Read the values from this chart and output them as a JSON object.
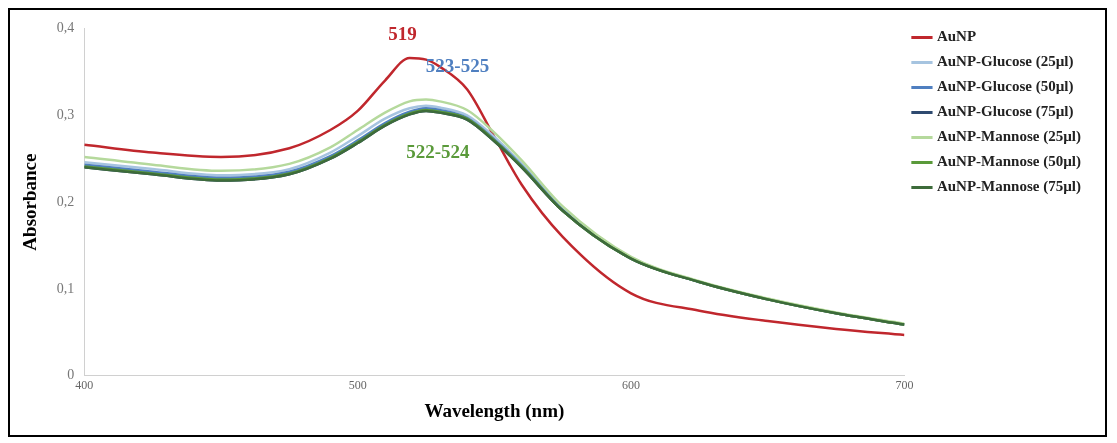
{
  "chart_data": {
    "type": "line",
    "xlabel": "Wavelength (nm)",
    "ylabel": "Absorbance",
    "x": [
      400,
      425,
      450,
      475,
      490,
      500,
      510,
      519,
      525,
      530,
      540,
      550,
      560,
      575,
      600,
      625,
      650,
      675,
      700
    ],
    "series": [
      {
        "name": "AuNP",
        "color": "#c0272d",
        "values": [
          0.266,
          0.257,
          0.252,
          0.262,
          0.283,
          0.305,
          0.34,
          0.366,
          0.364,
          0.356,
          0.33,
          0.275,
          0.22,
          0.16,
          0.095,
          0.075,
          0.063,
          0.054,
          0.047
        ]
      },
      {
        "name": "AuNP-Glucose (25µl)",
        "color": "#a6c4e0",
        "values": [
          0.246,
          0.238,
          0.231,
          0.238,
          0.257,
          0.276,
          0.296,
          0.308,
          0.311,
          0.309,
          0.3,
          0.275,
          0.244,
          0.192,
          0.136,
          0.108,
          0.088,
          0.072,
          0.059
        ]
      },
      {
        "name": "AuNP-Glucose (50µl)",
        "color": "#4f7fc0",
        "values": [
          0.243,
          0.235,
          0.228,
          0.235,
          0.253,
          0.271,
          0.291,
          0.304,
          0.308,
          0.306,
          0.297,
          0.272,
          0.242,
          0.191,
          0.135,
          0.108,
          null,
          null,
          null
        ]
      },
      {
        "name": "AuNP-Glucose (75µl)",
        "color": "#2e4a70",
        "values": [
          0.24,
          0.232,
          0.225,
          0.232,
          0.25,
          0.268,
          0.288,
          0.301,
          0.305,
          0.303,
          0.295,
          0.27,
          0.24,
          0.19,
          0.135,
          0.108,
          0.088,
          0.072,
          0.059
        ]
      },
      {
        "name": "AuNP-Mannose (25µl)",
        "color": "#b5d99c",
        "values": [
          0.252,
          0.243,
          0.236,
          0.244,
          0.263,
          0.283,
          0.303,
          0.316,
          0.318,
          0.316,
          0.306,
          0.28,
          0.248,
          0.195,
          0.137,
          0.109,
          0.089,
          0.073,
          0.06
        ]
      },
      {
        "name": "AuNP-Mannose (50µl)",
        "color": "#5a9a3a",
        "values": [
          0.241,
          0.233,
          0.226,
          0.233,
          0.251,
          0.269,
          0.289,
          0.302,
          0.306,
          0.304,
          0.296,
          0.271,
          0.241,
          0.19,
          0.135,
          0.108,
          0.088,
          0.072,
          0.059
        ]
      },
      {
        "name": "AuNP-Mannose (75µl)",
        "color": "#3d6b3a",
        "values": [
          0.24,
          0.232,
          0.225,
          0.232,
          0.25,
          0.268,
          0.288,
          0.301,
          0.305,
          0.303,
          0.295,
          0.27,
          0.24,
          0.19,
          0.135,
          0.108,
          0.088,
          0.072,
          0.059
        ]
      }
    ],
    "xlim": [
      400,
      700
    ],
    "xticks": [
      400,
      500,
      600,
      700
    ],
    "ylim": [
      0,
      0.4
    ],
    "yticks": [
      {
        "value": 0,
        "label": "0"
      },
      {
        "value": 0.1,
        "label": "0,1"
      },
      {
        "value": 0.2,
        "label": "0,2"
      },
      {
        "value": 0.3,
        "label": "0,3"
      },
      {
        "value": 0.4,
        "label": "0,4"
      }
    ],
    "annotations": [
      "519",
      "523-525",
      "522-524"
    ],
    "grid": false,
    "legend": "right",
    "marker": "none",
    "line_style": "solid"
  }
}
